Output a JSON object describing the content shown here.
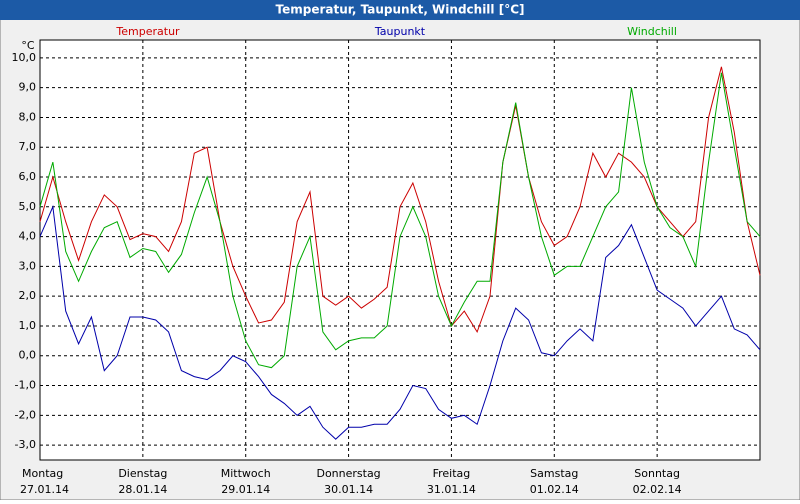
{
  "chart_data": {
    "type": "line",
    "title": "Temperatur, Taupunkt, Windchill [°C]",
    "y_label": "°C",
    "x": [
      0,
      3,
      6,
      9,
      12,
      15,
      18,
      21,
      24,
      27,
      30,
      33,
      36,
      39,
      42,
      45,
      48,
      51,
      54,
      57,
      60,
      63,
      66,
      69,
      72,
      75,
      78,
      81,
      84,
      87,
      90,
      93,
      96,
      99,
      102,
      105,
      108,
      111,
      114,
      117,
      120,
      123,
      126,
      129,
      132,
      135,
      138,
      141,
      144,
      147,
      150,
      153,
      156,
      159,
      162,
      165,
      168
    ],
    "xlim": [
      0,
      168
    ],
    "xticks": [
      {
        "value": 0,
        "label": "Montag"
      },
      {
        "value": 24,
        "label": "Dienstag"
      },
      {
        "value": 48,
        "label": "Mittwoch"
      },
      {
        "value": 72,
        "label": "Donnerstag"
      },
      {
        "value": 96,
        "label": "Freitag"
      },
      {
        "value": 120,
        "label": "Samstag"
      },
      {
        "value": 144,
        "label": "Sonntag"
      }
    ],
    "xtick_dates": [
      "27.01.14",
      "28.01.14",
      "29.01.14",
      "30.01.14",
      "31.01.14",
      "01.02.14",
      "02.02.14"
    ],
    "ylim": [
      -3.5,
      10.6
    ],
    "yticks": [
      {
        "value": -3,
        "label": "-3,0"
      },
      {
        "value": -2,
        "label": "-2,0"
      },
      {
        "value": -1,
        "label": "-1,0"
      },
      {
        "value": 0,
        "label": "0,0"
      },
      {
        "value": 1,
        "label": "1,0"
      },
      {
        "value": 2,
        "label": "2,0"
      },
      {
        "value": 3,
        "label": "3,0"
      },
      {
        "value": 4,
        "label": "4,0"
      },
      {
        "value": 5,
        "label": "5,0"
      },
      {
        "value": 6,
        "label": "6,0"
      },
      {
        "value": 7,
        "label": "7,0"
      },
      {
        "value": 8,
        "label": "8,0"
      },
      {
        "value": 9,
        "label": "9,0"
      },
      {
        "value": 10,
        "label": "10,0"
      }
    ],
    "grid": true,
    "series": [
      {
        "name": "Temperatur",
        "color": "#cc0000",
        "values": [
          4.5,
          6.0,
          4.5,
          3.2,
          4.5,
          5.4,
          5.0,
          3.9,
          4.1,
          4.0,
          3.5,
          4.5,
          6.8,
          7.0,
          4.5,
          3.0,
          2.0,
          1.1,
          1.2,
          1.8,
          4.5,
          5.5,
          2.0,
          1.7,
          2.0,
          1.6,
          1.9,
          2.3,
          5.0,
          5.8,
          4.5,
          2.5,
          1.0,
          1.5,
          0.8,
          2.0,
          6.5,
          8.4,
          6.0,
          4.5,
          3.7,
          4.0,
          5.0,
          6.8,
          6.0,
          6.8,
          6.5,
          6.0,
          5.0,
          4.5,
          4.0,
          4.5,
          8.0,
          9.7,
          7.5,
          4.5,
          2.7
        ]
      },
      {
        "name": "Taupunkt",
        "color": "#0000aa",
        "values": [
          4.0,
          5.0,
          1.5,
          0.4,
          1.3,
          -0.5,
          0.0,
          1.3,
          1.3,
          1.2,
          0.8,
          -0.5,
          -0.7,
          -0.8,
          -0.5,
          0.0,
          -0.2,
          -0.7,
          -1.3,
          -1.6,
          -2.0,
          -1.7,
          -2.4,
          -2.8,
          -2.4,
          -2.4,
          -2.3,
          -2.3,
          -1.8,
          -1.0,
          -1.1,
          -1.8,
          -2.1,
          -2.0,
          -2.3,
          -1.0,
          0.5,
          1.6,
          1.2,
          0.1,
          0.0,
          0.5,
          0.9,
          0.5,
          3.3,
          3.7,
          4.4,
          3.3,
          2.2,
          1.9,
          1.6,
          1.0,
          1.5,
          2.0,
          0.9,
          0.7,
          0.2
        ]
      },
      {
        "name": "Windchill",
        "color": "#00aa00",
        "values": [
          5.0,
          6.5,
          3.5,
          2.5,
          3.5,
          4.3,
          4.5,
          3.3,
          3.6,
          3.5,
          2.8,
          3.4,
          4.8,
          6.0,
          4.5,
          2.0,
          0.5,
          -0.3,
          -0.4,
          0.0,
          3.0,
          4.0,
          0.8,
          0.2,
          0.5,
          0.6,
          0.6,
          1.0,
          4.0,
          5.0,
          4.0,
          2.0,
          1.0,
          1.8,
          2.5,
          2.5,
          6.5,
          8.5,
          6.0,
          4.0,
          2.7,
          3.0,
          3.0,
          4.0,
          5.0,
          5.5,
          9.0,
          6.5,
          5.0,
          4.3,
          4.0,
          3.0,
          6.5,
          9.5,
          7.0,
          4.5,
          4.0
        ]
      }
    ]
  }
}
